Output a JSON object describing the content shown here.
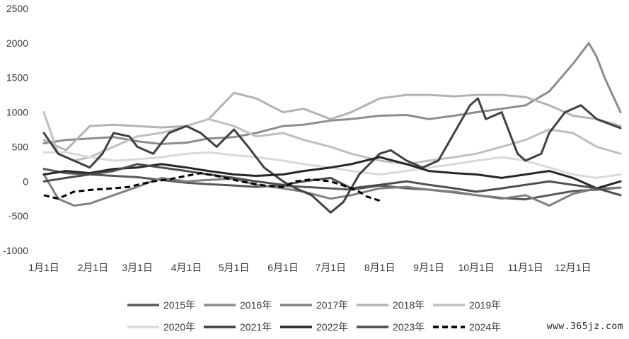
{
  "chart_data": {
    "type": "line",
    "title": "",
    "xlabel": "",
    "ylabel": "",
    "ylim": [
      -1000,
      2500
    ],
    "yticks": [
      -1000,
      -500,
      0,
      500,
      1000,
      1500,
      2000,
      2500
    ],
    "xlim": [
      1,
      365
    ],
    "x_tick_labels": [
      {
        "label": "1月1日",
        "day": 1
      },
      {
        "label": "2月1日",
        "day": 32
      },
      {
        "label": "3月1日",
        "day": 60
      },
      {
        "label": "4月1日",
        "day": 91
      },
      {
        "label": "5月1日",
        "day": 121
      },
      {
        "label": "6月1日",
        "day": 152
      },
      {
        "label": "7月1日",
        "day": 182
      },
      {
        "label": "8月1日",
        "day": 213
      },
      {
        "label": "9月1日",
        "day": 244
      },
      {
        "label": "10月1日",
        "day": 274
      },
      {
        "label": "11月1日",
        "day": 305
      },
      {
        "label": "12月1日",
        "day": 335
      }
    ],
    "grid": false,
    "legend_position": "bottom",
    "series": [
      {
        "name": "2015年",
        "color": "#595959",
        "dash": false,
        "x": [
          1,
          15,
          30,
          45,
          60,
          75,
          91,
          105,
          121,
          135,
          152,
          165,
          182,
          195,
          213,
          230,
          244,
          260,
          274,
          290,
          305,
          320,
          335,
          350,
          365
        ],
        "y": [
          180,
          120,
          100,
          80,
          60,
          20,
          -20,
          -40,
          -60,
          -80,
          -60,
          -80,
          -100,
          -120,
          -60,
          -100,
          -120,
          -160,
          -200,
          -240,
          -260,
          -200,
          -140,
          -120,
          -90
        ]
      },
      {
        "name": "2016年",
        "color": "#8c8c8c",
        "dash": false,
        "x": [
          1,
          15,
          30,
          45,
          60,
          75,
          91,
          105,
          121,
          135,
          152,
          165,
          182,
          195,
          213,
          230,
          244,
          260,
          274,
          290,
          305,
          320,
          335,
          345,
          350,
          355,
          365
        ],
        "y": [
          550,
          600,
          620,
          640,
          580,
          540,
          560,
          620,
          640,
          700,
          800,
          820,
          880,
          900,
          950,
          960,
          900,
          950,
          1000,
          1050,
          1100,
          1300,
          1700,
          2000,
          1800,
          1500,
          1000
        ]
      },
      {
        "name": "2017年",
        "color": "#808080",
        "dash": false,
        "x": [
          1,
          10,
          20,
          30,
          45,
          60,
          75,
          91,
          105,
          121,
          135,
          152,
          165,
          182,
          195,
          213,
          230,
          244,
          260,
          274,
          290,
          305,
          320,
          335,
          350,
          365
        ],
        "y": [
          100,
          -250,
          -350,
          -320,
          -200,
          -80,
          50,
          0,
          20,
          40,
          -50,
          -100,
          -150,
          -250,
          -200,
          -100,
          -80,
          -120,
          -150,
          -200,
          -250,
          -200,
          -350,
          -180,
          -100,
          -90
        ]
      },
      {
        "name": "2018年",
        "color": "#b3b3b3",
        "dash": false,
        "x": [
          1,
          15,
          30,
          45,
          60,
          75,
          91,
          105,
          121,
          135,
          152,
          165,
          182,
          195,
          213,
          230,
          244,
          260,
          274,
          290,
          305,
          320,
          335,
          350,
          365
        ],
        "y": [
          600,
          450,
          800,
          820,
          800,
          780,
          800,
          900,
          1280,
          1200,
          1000,
          1050,
          900,
          1000,
          1200,
          1250,
          1250,
          1230,
          1250,
          1250,
          1220,
          1100,
          950,
          900,
          800
        ]
      },
      {
        "name": "2019年",
        "color": "#bfbfbf",
        "dash": false,
        "x": [
          1,
          10,
          20,
          30,
          45,
          60,
          75,
          91,
          105,
          121,
          135,
          152,
          165,
          182,
          195,
          213,
          230,
          244,
          260,
          274,
          290,
          305,
          320,
          335,
          350,
          365
        ],
        "y": [
          1000,
          400,
          300,
          350,
          500,
          650,
          700,
          800,
          900,
          800,
          650,
          700,
          600,
          500,
          400,
          300,
          250,
          300,
          350,
          400,
          500,
          600,
          750,
          700,
          500,
          400
        ]
      },
      {
        "name": "2020年",
        "color": "#d9d9d9",
        "dash": false,
        "x": [
          1,
          15,
          30,
          45,
          60,
          75,
          91,
          105,
          121,
          135,
          152,
          165,
          182,
          195,
          213,
          230,
          244,
          260,
          274,
          290,
          305,
          320,
          335,
          350,
          365
        ],
        "y": [
          420,
          420,
          350,
          300,
          320,
          350,
          400,
          420,
          380,
          350,
          300,
          250,
          200,
          150,
          100,
          150,
          200,
          250,
          300,
          350,
          300,
          200,
          100,
          50,
          100
        ]
      },
      {
        "name": "2021年",
        "color": "#404040",
        "dash": false,
        "x": [
          1,
          10,
          20,
          30,
          38,
          45,
          55,
          60,
          70,
          80,
          91,
          100,
          110,
          121,
          130,
          140,
          152,
          160,
          170,
          182,
          190,
          200,
          213,
          220,
          230,
          240,
          250,
          260,
          270,
          275,
          280,
          290,
          300,
          305,
          315,
          320,
          330,
          340,
          350,
          365
        ],
        "y": [
          700,
          400,
          300,
          200,
          400,
          700,
          650,
          500,
          400,
          700,
          800,
          700,
          500,
          750,
          500,
          200,
          0,
          -100,
          -200,
          -450,
          -300,
          100,
          400,
          450,
          300,
          200,
          300,
          700,
          1100,
          1200,
          900,
          1000,
          400,
          300,
          400,
          700,
          1000,
          1100,
          900,
          770
        ]
      },
      {
        "name": "2022年",
        "color": "#262626",
        "dash": false,
        "x": [
          1,
          15,
          30,
          45,
          60,
          75,
          91,
          105,
          121,
          135,
          152,
          165,
          182,
          195,
          213,
          230,
          244,
          260,
          274,
          290,
          305,
          320,
          335,
          350,
          365
        ],
        "y": [
          100,
          150,
          120,
          180,
          200,
          250,
          200,
          150,
          100,
          80,
          100,
          150,
          200,
          250,
          350,
          250,
          150,
          120,
          100,
          50,
          100,
          150,
          50,
          -100,
          0
        ]
      },
      {
        "name": "2023年",
        "color": "#4d4d4d",
        "dash": false,
        "x": [
          1,
          15,
          30,
          45,
          60,
          75,
          91,
          105,
          121,
          135,
          152,
          165,
          182,
          195,
          213,
          230,
          244,
          260,
          274,
          290,
          305,
          320,
          335,
          350,
          365
        ],
        "y": [
          0,
          50,
          100,
          150,
          250,
          200,
          150,
          100,
          50,
          0,
          -50,
          0,
          50,
          -100,
          -50,
          0,
          -50,
          -100,
          -150,
          -100,
          -50,
          0,
          -50,
          -100,
          -200
        ]
      },
      {
        "name": "2024年",
        "color": "#000000",
        "dash": true,
        "x": [
          1,
          10,
          20,
          32,
          45,
          55,
          60,
          70,
          80,
          91,
          100,
          110,
          121,
          130,
          140,
          152,
          160,
          170,
          182,
          190,
          195,
          200,
          205,
          213
        ],
        "y": [
          -200,
          -250,
          -150,
          -120,
          -100,
          -80,
          -50,
          0,
          30,
          80,
          120,
          80,
          20,
          -20,
          -60,
          -80,
          0,
          30,
          0,
          -60,
          -100,
          -150,
          -220,
          -280
        ]
      }
    ]
  },
  "watermark": "www.365jz.com"
}
